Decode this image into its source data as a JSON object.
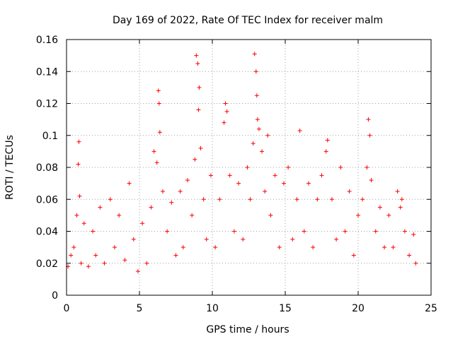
{
  "chart_data": {
    "type": "scatter",
    "title": "Day 169 of 2022, Rate Of TEC Index for receiver malm",
    "xlabel": "GPS time / hours",
    "ylabel": "ROTI / TECUs",
    "xlim": [
      0,
      25
    ],
    "ylim": [
      0,
      0.16
    ],
    "xticks": [
      0,
      5,
      10,
      15,
      20,
      25
    ],
    "yticks": [
      0,
      0.02,
      0.04,
      0.06,
      0.08,
      0.1,
      0.12,
      0.14,
      0.16
    ],
    "xtick_labels": [
      "0",
      "5",
      "10",
      "15",
      "20",
      "25"
    ],
    "ytick_labels": [
      "0",
      "0.02",
      "0.04",
      "0.06",
      "0.08",
      "0.1",
      "0.12",
      "0.14",
      "0.16"
    ],
    "grid": true,
    "marker": "+",
    "series_color": "#ff0000",
    "series": [
      {
        "name": "ROTI",
        "x": [
          0.1,
          0.3,
          0.5,
          0.7,
          0.8,
          0.85,
          0.9,
          1.0,
          1.2,
          1.5,
          1.8,
          2.0,
          2.3,
          2.6,
          3.0,
          3.3,
          3.6,
          4.0,
          4.3,
          4.6,
          4.9,
          5.2,
          5.5,
          5.8,
          6.0,
          6.2,
          6.3,
          6.35,
          6.4,
          6.6,
          6.9,
          7.2,
          7.5,
          7.8,
          8.0,
          8.3,
          8.6,
          8.8,
          8.9,
          9.0,
          9.05,
          9.1,
          9.2,
          9.4,
          9.6,
          9.9,
          10.2,
          10.5,
          10.8,
          10.9,
          11.0,
          11.2,
          11.5,
          11.8,
          12.1,
          12.4,
          12.6,
          12.8,
          12.9,
          13.0,
          13.05,
          13.1,
          13.2,
          13.4,
          13.6,
          13.8,
          14.0,
          14.3,
          14.6,
          14.9,
          15.2,
          15.5,
          15.8,
          16.0,
          16.3,
          16.6,
          16.9,
          17.2,
          17.5,
          17.8,
          17.9,
          18.2,
          18.5,
          18.8,
          19.1,
          19.4,
          19.7,
          20.0,
          20.3,
          20.6,
          20.7,
          20.8,
          20.9,
          21.2,
          21.5,
          21.8,
          22.1,
          22.4,
          22.7,
          22.9,
          23.0,
          23.2,
          23.5,
          23.8,
          23.95
        ],
        "y": [
          0.018,
          0.025,
          0.03,
          0.05,
          0.082,
          0.096,
          0.062,
          0.02,
          0.045,
          0.018,
          0.04,
          0.025,
          0.055,
          0.02,
          0.06,
          0.03,
          0.05,
          0.022,
          0.07,
          0.035,
          0.015,
          0.045,
          0.02,
          0.055,
          0.09,
          0.083,
          0.128,
          0.12,
          0.102,
          0.065,
          0.04,
          0.058,
          0.025,
          0.065,
          0.03,
          0.072,
          0.05,
          0.085,
          0.15,
          0.145,
          0.116,
          0.13,
          0.092,
          0.06,
          0.035,
          0.075,
          0.03,
          0.06,
          0.108,
          0.12,
          0.115,
          0.075,
          0.04,
          0.07,
          0.035,
          0.08,
          0.06,
          0.095,
          0.151,
          0.14,
          0.125,
          0.11,
          0.104,
          0.09,
          0.065,
          0.1,
          0.05,
          0.075,
          0.03,
          0.07,
          0.08,
          0.035,
          0.06,
          0.103,
          0.04,
          0.07,
          0.03,
          0.06,
          0.075,
          0.09,
          0.097,
          0.06,
          0.035,
          0.08,
          0.04,
          0.065,
          0.025,
          0.05,
          0.06,
          0.08,
          0.11,
          0.1,
          0.072,
          0.04,
          0.055,
          0.03,
          0.05,
          0.03,
          0.065,
          0.055,
          0.06,
          0.04,
          0.025,
          0.038,
          0.02
        ]
      }
    ]
  }
}
